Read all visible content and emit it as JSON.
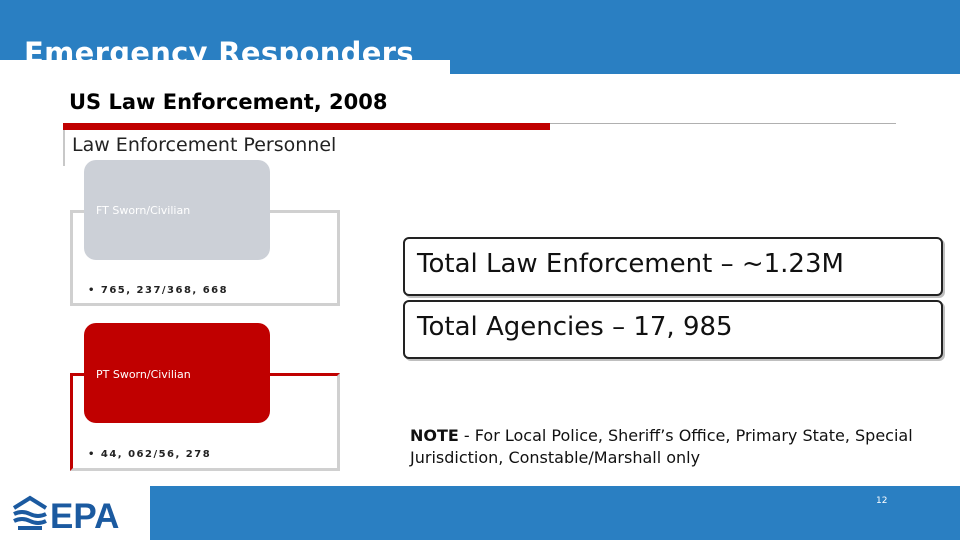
{
  "header": {
    "title": "Emergency Responders"
  },
  "slide": {
    "subtitle": "US Law Enforcement, 2008",
    "section_label": "Law Enforcement Personnel",
    "full_time": {
      "label": "FT Sworn/Civilian",
      "value": "• 765, 237/368, 668"
    },
    "part_time": {
      "label": "PT Sworn/Civilian",
      "value": "• 44, 062/56, 278"
    },
    "stats": {
      "total_law_enforcement": "Total Law Enforcement – ~1.23M",
      "total_agencies": "Total Agencies – 17, 985"
    },
    "note": {
      "label": "NOTE",
      "text": " - For Local Police, Sheriff’s Office, Primary State, Special Jurisdiction, Constable/Marshall only"
    }
  },
  "footer": {
    "logo_text": "EPA",
    "page_number": "12"
  },
  "colors": {
    "brand_blue": "#2a7fc2",
    "accent_red": "#c00000",
    "gray_box": "#ccd0d7"
  }
}
